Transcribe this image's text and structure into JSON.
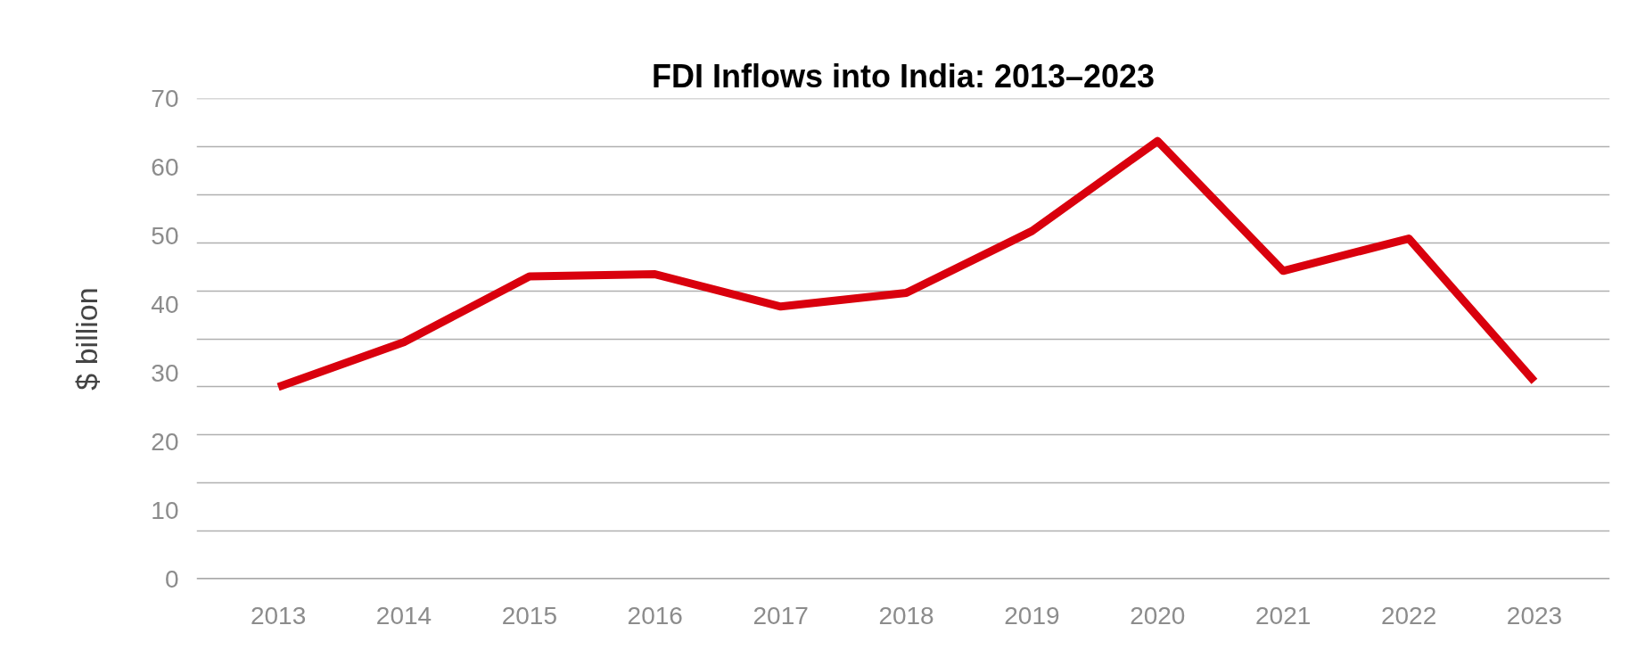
{
  "chart_data": {
    "type": "line",
    "title": "FDI Inflows into India: 2013–2023",
    "ylabel": "$ billion",
    "categories": [
      "2013",
      "2014",
      "2015",
      "2016",
      "2017",
      "2018",
      "2019",
      "2020",
      "2021",
      "2022",
      "2023"
    ],
    "series": [
      {
        "color": "#d9000d",
        "values": [
          28.0,
          34.5,
          44.1,
          44.4,
          39.7,
          41.7,
          50.7,
          63.8,
          44.9,
          49.6,
          28.8
        ]
      }
    ],
    "ylim": [
      0,
      70
    ],
    "yticks": [
      0,
      10,
      20,
      30,
      40,
      50,
      60,
      70,
      {
        "value": 7,
        "label": null
      },
      {
        "value": 14,
        "label": null
      },
      {
        "value": 21,
        "label": null
      },
      {
        "value": 28,
        "label": null
      },
      {
        "value": 35,
        "label": null
      },
      {
        "value": 42,
        "label": null
      },
      {
        "value": 49,
        "label": null
      },
      {
        "value": 56,
        "label": null
      },
      {
        "value": 63,
        "label": null
      }
    ],
    "grid": "y",
    "marker": "none",
    "line_style": "solid"
  }
}
